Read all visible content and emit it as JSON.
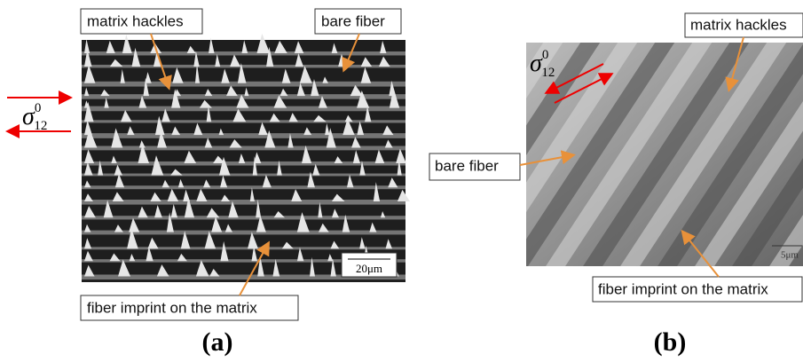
{
  "panels": [
    {
      "label": "(a)",
      "annotations": [
        "matrix hackles",
        "bare fiber",
        "fiber imprint on the matrix"
      ],
      "scale_bar": "20μm",
      "stress": {
        "symbol": "σ",
        "subscript": "12",
        "superscript": "0"
      }
    },
    {
      "label": "(b)",
      "annotations": [
        "matrix hackles",
        "bare fiber",
        "fiber imprint on the matrix"
      ],
      "scale_bar": "5μm",
      "stress": {
        "symbol": "σ",
        "subscript": "12",
        "superscript": "0"
      }
    }
  ]
}
